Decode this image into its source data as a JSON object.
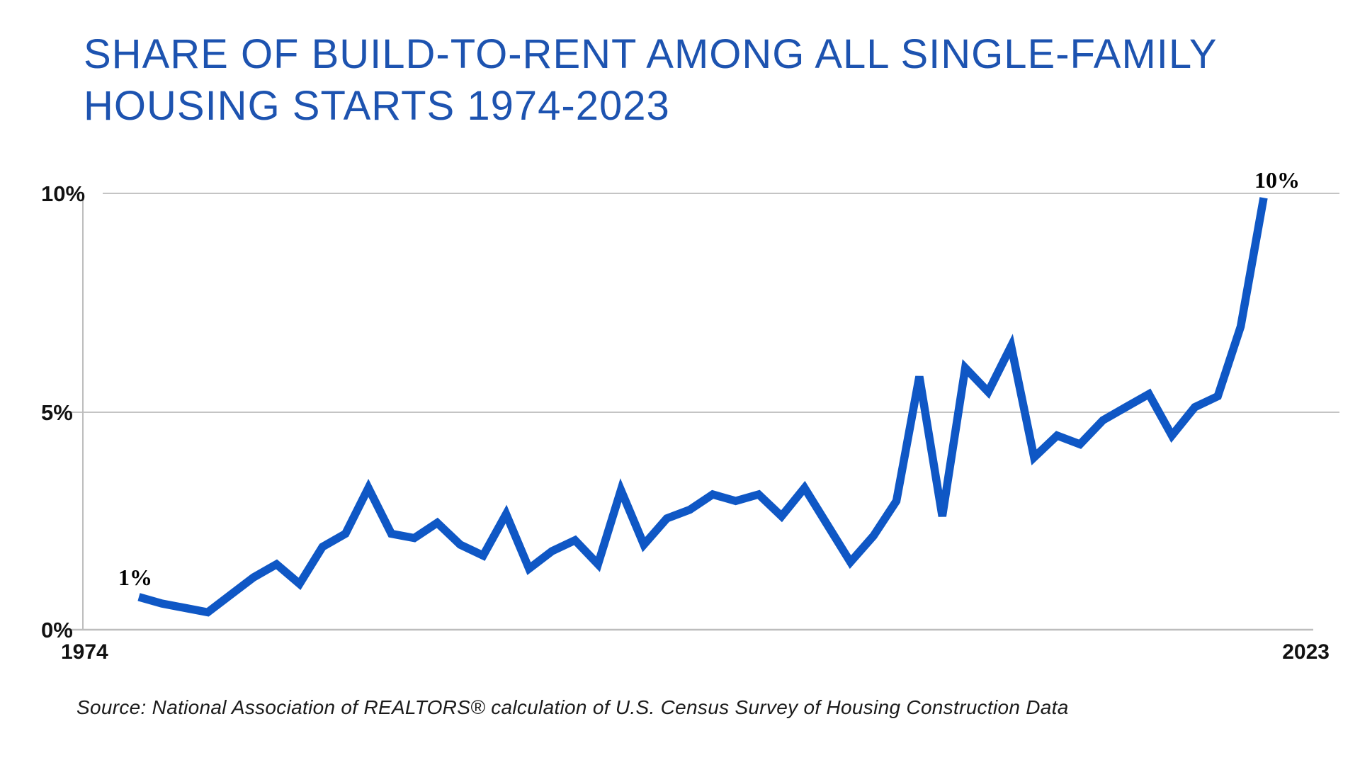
{
  "title": {
    "line1": "SHARE OF BUILD-TO-RENT AMONG ALL SINGLE-FAMILY",
    "line2": "HOUSING STARTS 1974-2023",
    "color": "#1D53B0"
  },
  "source_note": "Source: National Association of REALTORS® calculation of U.S. Census Survey of Housing Construction Data",
  "chart_data": {
    "type": "line",
    "title": "Share of build-to-rent among all single-family housing starts 1974-2023",
    "x": [
      1974,
      1975,
      1976,
      1977,
      1978,
      1979,
      1980,
      1981,
      1982,
      1983,
      1984,
      1985,
      1986,
      1987,
      1988,
      1989,
      1990,
      1991,
      1992,
      1993,
      1994,
      1995,
      1996,
      1997,
      1998,
      1999,
      2000,
      2001,
      2002,
      2003,
      2004,
      2005,
      2006,
      2007,
      2008,
      2009,
      2010,
      2011,
      2012,
      2013,
      2014,
      2015,
      2016,
      2017,
      2018,
      2019,
      2020,
      2021,
      2022,
      2023
    ],
    "series": [
      {
        "name": "Build-to-rent share of single-family housing starts (%)",
        "values": [
          0.75,
          0.6,
          0.5,
          0.4,
          0.8,
          1.2,
          1.5,
          1.05,
          1.9,
          2.2,
          3.25,
          2.2,
          2.1,
          2.45,
          1.95,
          1.7,
          2.65,
          1.4,
          1.8,
          2.05,
          1.5,
          3.2,
          1.95,
          2.55,
          2.75,
          3.1,
          2.95,
          3.1,
          2.6,
          3.25,
          2.4,
          1.55,
          2.15,
          2.95,
          5.8,
          2.6,
          6.0,
          5.45,
          6.5,
          3.95,
          4.45,
          4.25,
          4.8,
          5.1,
          5.4,
          4.45,
          5.1,
          5.35,
          6.95,
          9.9
        ]
      }
    ],
    "ylim": [
      0,
      10
    ],
    "xlabel": "",
    "ylabel": "",
    "grid": "horizontal",
    "legend": "none",
    "line_color": "#0F57C5",
    "gridline_color": "#C4C4C4",
    "yticks": [
      {
        "label": "0%",
        "value": 0
      },
      {
        "label": "5%",
        "value": 5
      },
      {
        "label": "10%",
        "value": 10
      }
    ],
    "xticks": [
      {
        "label": "1974",
        "value": 1974
      },
      {
        "label": "2023",
        "value": 2023
      }
    ],
    "annotations": [
      {
        "text": "1%",
        "x": 1974,
        "y": 0.75,
        "position": "above-first-point"
      },
      {
        "text": "10%",
        "x": 2023,
        "y": 9.9,
        "position": "above-last-point"
      }
    ]
  }
}
